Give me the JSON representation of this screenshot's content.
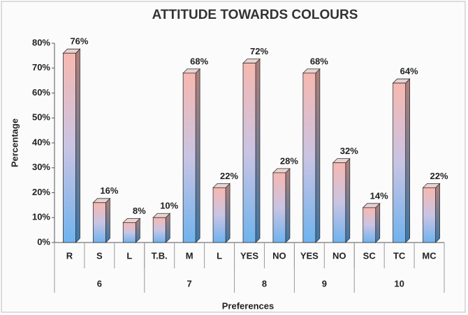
{
  "chart_data": {
    "type": "bar",
    "title": "ATTITUDE TOWARDS COLOURS",
    "y_label": "Percentage",
    "x_label": "Preferences",
    "ylim": [
      0,
      80
    ],
    "yticks": [
      {
        "value": 0,
        "label": "0%"
      },
      {
        "value": 10,
        "label": "10%"
      },
      {
        "value": 20,
        "label": "20%"
      },
      {
        "value": 30,
        "label": "30%"
      },
      {
        "value": 40,
        "label": "40%"
      },
      {
        "value": 50,
        "label": "50%"
      },
      {
        "value": 60,
        "label": "60%"
      },
      {
        "value": 70,
        "label": "70%"
      },
      {
        "value": 80,
        "label": "80%"
      }
    ],
    "groups": [
      {
        "label": "6",
        "categories": [
          "R",
          "S",
          "L"
        ],
        "values": [
          76,
          16,
          8
        ],
        "value_labels": [
          "76%",
          "16%",
          "8%"
        ]
      },
      {
        "label": "7",
        "categories": [
          "T.B.",
          "M",
          "L"
        ],
        "values": [
          10,
          68,
          22
        ],
        "value_labels": [
          "10%",
          "68%",
          "22%"
        ]
      },
      {
        "label": "8",
        "categories": [
          "YES",
          "NO"
        ],
        "values": [
          72,
          28
        ],
        "value_labels": [
          "72%",
          "28%"
        ]
      },
      {
        "label": "9",
        "categories": [
          "YES",
          "NO"
        ],
        "values": [
          68,
          32
        ],
        "value_labels": [
          "68%",
          "32%"
        ]
      },
      {
        "label": "10",
        "categories": [
          "SC",
          "TC",
          "MC"
        ],
        "values": [
          14,
          64,
          22
        ],
        "value_labels": [
          "14%",
          "64%",
          "22%"
        ]
      }
    ]
  }
}
